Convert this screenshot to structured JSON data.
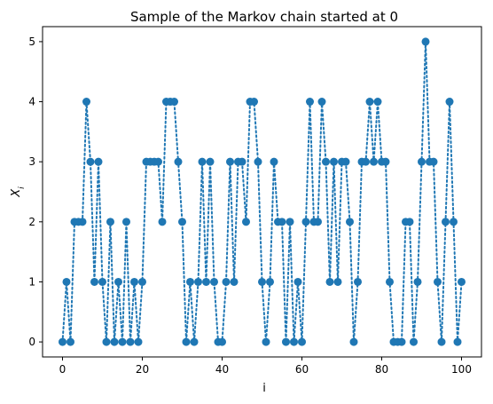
{
  "chart_data": {
    "type": "line",
    "title": "Sample of the Markov chain started at 0",
    "xlabel": "i",
    "ylabel": "X_i",
    "xlim": [
      -5,
      105
    ],
    "ylim": [
      -0.25,
      5.25
    ],
    "x_ticks": [
      0,
      20,
      40,
      60,
      80,
      100
    ],
    "y_ticks": [
      0,
      1,
      2,
      3,
      4,
      5
    ],
    "grid": false,
    "color": "#1f77b4",
    "line_style": "dotted",
    "marker": "circle",
    "x": [
      0,
      1,
      2,
      3,
      4,
      5,
      6,
      7,
      8,
      9,
      10,
      11,
      12,
      13,
      14,
      15,
      16,
      17,
      18,
      19,
      20,
      21,
      22,
      23,
      24,
      25,
      26,
      27,
      28,
      29,
      30,
      31,
      32,
      33,
      34,
      35,
      36,
      37,
      38,
      39,
      40,
      41,
      42,
      43,
      44,
      45,
      46,
      47,
      48,
      49,
      50,
      51,
      52,
      53,
      54,
      55,
      56,
      57,
      58,
      59,
      60,
      61,
      62,
      63,
      64,
      65,
      66,
      67,
      68,
      69,
      70,
      71,
      72,
      73,
      74,
      75,
      76,
      77,
      78,
      79,
      80,
      81,
      82,
      83,
      84,
      85,
      86,
      87,
      88,
      89,
      90,
      91,
      92,
      93,
      94,
      95,
      96,
      97,
      98,
      99,
      100
    ],
    "y": [
      0,
      1,
      0,
      2,
      2,
      2,
      4,
      3,
      1,
      3,
      1,
      0,
      2,
      0,
      1,
      0,
      2,
      0,
      1,
      0,
      1,
      3,
      3,
      3,
      3,
      2,
      4,
      4,
      4,
      3,
      2,
      0,
      1,
      0,
      1,
      3,
      1,
      3,
      1,
      0,
      0,
      1,
      3,
      1,
      3,
      3,
      2,
      4,
      4,
      3,
      1,
      0,
      1,
      3,
      2,
      2,
      0,
      2,
      0,
      1,
      0,
      2,
      4,
      2,
      2,
      4,
      3,
      1,
      3,
      1,
      3,
      3,
      2,
      0,
      1,
      3,
      3,
      4,
      3,
      4,
      3,
      3,
      1,
      0,
      0,
      0,
      2,
      2,
      0,
      1,
      3,
      5,
      3,
      3,
      1,
      0,
      2,
      4,
      2,
      0,
      1
    ]
  }
}
